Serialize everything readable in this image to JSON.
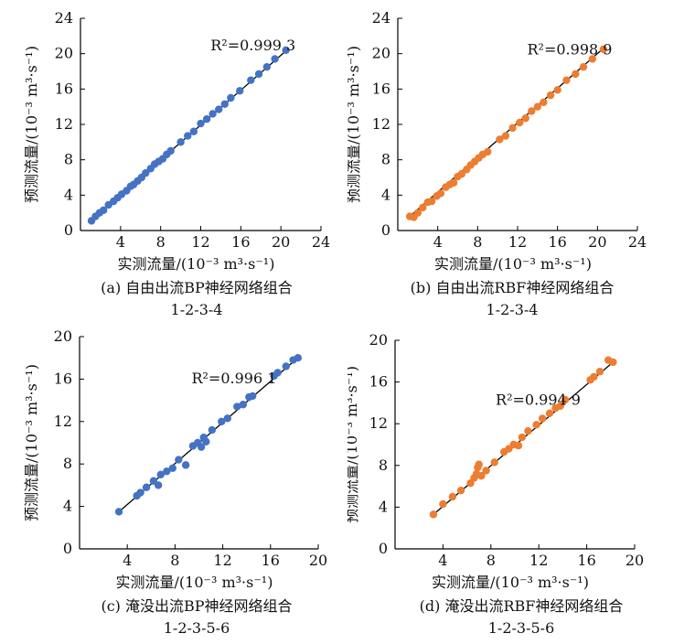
{
  "colors": {
    "bp": "#4472C4",
    "rbf": "#ED7D31",
    "axis": "#000000",
    "fit": "#000000"
  },
  "chart_data": [
    {
      "type": "scatter",
      "panel": "a",
      "caption_line1": "(a) 自由出流BP神经网络组合",
      "caption_line2": "1-2-3-4",
      "xlabel": "实测流量/(10⁻³ m³·s⁻¹)",
      "ylabel": "预测流量/(10⁻³ m³·s⁻¹)",
      "annotation": "R²=0.999 3",
      "xlim": [
        0,
        24
      ],
      "ylim": [
        0,
        24
      ],
      "xticks": [
        "0",
        "4",
        "8",
        "12",
        "16",
        "20",
        "24"
      ],
      "yticks": [
        "0",
        "4",
        "8",
        "12",
        "16",
        "20",
        "24"
      ],
      "color": "#4472C4",
      "fit_line": [
        [
          1,
          1.1
        ],
        [
          20.6,
          20.4
        ]
      ],
      "points": [
        [
          1.1,
          1.1
        ],
        [
          1.5,
          1.6
        ],
        [
          1.9,
          2.0
        ],
        [
          2.3,
          2.3
        ],
        [
          2.8,
          2.9
        ],
        [
          3.3,
          3.3
        ],
        [
          3.7,
          3.7
        ],
        [
          4.1,
          4.1
        ],
        [
          4.6,
          4.5
        ],
        [
          5.0,
          5.0
        ],
        [
          5.3,
          5.2
        ],
        [
          5.7,
          5.6
        ],
        [
          6.1,
          6.0
        ],
        [
          6.5,
          6.5
        ],
        [
          7.0,
          7.0
        ],
        [
          7.4,
          7.5
        ],
        [
          7.8,
          7.8
        ],
        [
          8.2,
          8.1
        ],
        [
          8.6,
          8.6
        ],
        [
          9.0,
          9.0
        ],
        [
          10.0,
          10.0
        ],
        [
          10.7,
          10.7
        ],
        [
          11.3,
          11.2
        ],
        [
          12.0,
          12.1
        ],
        [
          12.6,
          12.6
        ],
        [
          13.2,
          13.2
        ],
        [
          13.8,
          13.7
        ],
        [
          14.4,
          14.3
        ],
        [
          15.0,
          15.0
        ],
        [
          15.9,
          15.8
        ],
        [
          17.0,
          17.0
        ],
        [
          17.8,
          17.7
        ],
        [
          18.6,
          18.5
        ],
        [
          19.4,
          19.4
        ],
        [
          20.5,
          20.4
        ]
      ]
    },
    {
      "type": "scatter",
      "panel": "b",
      "caption_line1": "(b) 自由出流RBF神经网络组合",
      "caption_line2": "1-2-3-4",
      "xlabel": "实测流量/(10⁻³ m³·s⁻¹)",
      "ylabel": "预测流量/(10⁻³ m³·s⁻¹)",
      "annotation": "R²=0.998 9",
      "xlim": [
        0,
        24
      ],
      "ylim": [
        0,
        24
      ],
      "xticks": [
        "0",
        "4",
        "8",
        "12",
        "16",
        "20",
        "24"
      ],
      "yticks": [
        "0",
        "4",
        "8",
        "12",
        "16",
        "20",
        "24"
      ],
      "color": "#ED7D31",
      "fit_line": [
        [
          1.2,
          1.6
        ],
        [
          20.6,
          20.6
        ]
      ],
      "points": [
        [
          1.2,
          1.6
        ],
        [
          1.6,
          1.5
        ],
        [
          2.0,
          2.0
        ],
        [
          2.5,
          2.6
        ],
        [
          3.0,
          3.2
        ],
        [
          3.4,
          3.3
        ],
        [
          3.9,
          3.9
        ],
        [
          4.3,
          4.2
        ],
        [
          4.8,
          4.9
        ],
        [
          5.2,
          5.2
        ],
        [
          5.6,
          5.4
        ],
        [
          6.0,
          6.1
        ],
        [
          6.4,
          6.4
        ],
        [
          6.9,
          6.9
        ],
        [
          7.3,
          7.4
        ],
        [
          7.7,
          7.8
        ],
        [
          8.1,
          8.2
        ],
        [
          8.5,
          8.6
        ],
        [
          9.0,
          8.9
        ],
        [
          10.2,
          10.3
        ],
        [
          10.8,
          10.7
        ],
        [
          11.5,
          11.6
        ],
        [
          12.2,
          12.2
        ],
        [
          12.8,
          12.7
        ],
        [
          13.4,
          13.5
        ],
        [
          14.0,
          14.0
        ],
        [
          14.6,
          14.5
        ],
        [
          15.3,
          15.3
        ],
        [
          16.0,
          15.9
        ],
        [
          16.9,
          17.0
        ],
        [
          17.8,
          17.7
        ],
        [
          18.6,
          18.5
        ],
        [
          19.5,
          19.4
        ],
        [
          20.6,
          20.5
        ]
      ]
    },
    {
      "type": "scatter",
      "panel": "c",
      "caption_line1": "(c) 淹没出流BP神经网络组合",
      "caption_line2": "1-2-3-5-6",
      "xlabel": "实测流量/(10⁻³ m³·s⁻¹)",
      "ylabel": "预测流量/(10⁻³ m³·s⁻¹)",
      "annotation": "R²=0.996 1",
      "xlim": [
        0,
        20
      ],
      "ylim": [
        0,
        20
      ],
      "xticks": [
        "0",
        "4",
        "8",
        "12",
        "16",
        "20"
      ],
      "yticks": [
        "0",
        "4",
        "8",
        "12",
        "16",
        "20"
      ],
      "color": "#4472C4",
      "fit_line": [
        [
          3.3,
          3.5
        ],
        [
          18.4,
          18.1
        ]
      ],
      "points": [
        [
          3.3,
          3.5
        ],
        [
          4.8,
          5.0
        ],
        [
          5.1,
          5.3
        ],
        [
          5.6,
          5.8
        ],
        [
          6.2,
          6.4
        ],
        [
          6.6,
          6.0
        ],
        [
          6.8,
          7.0
        ],
        [
          7.3,
          7.3
        ],
        [
          7.8,
          7.6
        ],
        [
          8.3,
          8.4
        ],
        [
          8.9,
          7.9
        ],
        [
          9.5,
          9.7
        ],
        [
          9.9,
          10.0
        ],
        [
          10.2,
          9.6
        ],
        [
          10.4,
          10.5
        ],
        [
          10.6,
          10.1
        ],
        [
          11.1,
          11.2
        ],
        [
          11.9,
          12.0
        ],
        [
          12.4,
          12.3
        ],
        [
          13.2,
          13.4
        ],
        [
          13.7,
          13.6
        ],
        [
          14.2,
          14.3
        ],
        [
          14.5,
          14.4
        ],
        [
          16.3,
          16.3
        ],
        [
          16.6,
          16.6
        ],
        [
          17.3,
          17.2
        ],
        [
          17.9,
          17.8
        ],
        [
          18.3,
          18.0
        ]
      ]
    },
    {
      "type": "scatter",
      "panel": "d",
      "caption_line1": "(d) 淹没出流RBF神经网络组合",
      "caption_line2": "1-2-3-5-6",
      "xlabel": "实测流量/(10⁻³ m³·s⁻¹)",
      "ylabel": "预测流量/(10⁻³ m³·s⁻¹)",
      "annotation": "R²=0.994 9",
      "xlim": [
        0,
        20
      ],
      "ylim": [
        0,
        20
      ],
      "xticks": [
        "0",
        "4",
        "8",
        "12",
        "16",
        "20"
      ],
      "yticks": [
        "0",
        "4",
        "8",
        "12",
        "16",
        "20"
      ],
      "color": "#ED7D31",
      "fit_line": [
        [
          3.2,
          3.3
        ],
        [
          18.3,
          18.0
        ]
      ],
      "points": [
        [
          3.2,
          3.3
        ],
        [
          4.0,
          4.3
        ],
        [
          4.8,
          5.0
        ],
        [
          5.5,
          5.6
        ],
        [
          6.3,
          6.3
        ],
        [
          6.6,
          6.8
        ],
        [
          6.8,
          7.2
        ],
        [
          6.9,
          7.8
        ],
        [
          7.0,
          8.1
        ],
        [
          7.2,
          7.0
        ],
        [
          7.6,
          7.5
        ],
        [
          8.3,
          8.3
        ],
        [
          9.1,
          9.3
        ],
        [
          9.5,
          9.6
        ],
        [
          9.9,
          10.0
        ],
        [
          10.3,
          9.9
        ],
        [
          10.6,
          10.7
        ],
        [
          11.1,
          11.3
        ],
        [
          11.8,
          11.9
        ],
        [
          12.3,
          12.5
        ],
        [
          12.9,
          13.0
        ],
        [
          13.4,
          13.5
        ],
        [
          13.8,
          13.7
        ],
        [
          14.2,
          14.3
        ],
        [
          16.3,
          16.2
        ],
        [
          16.6,
          16.5
        ],
        [
          17.1,
          17.0
        ],
        [
          17.8,
          18.1
        ],
        [
          18.2,
          17.9
        ]
      ]
    }
  ]
}
